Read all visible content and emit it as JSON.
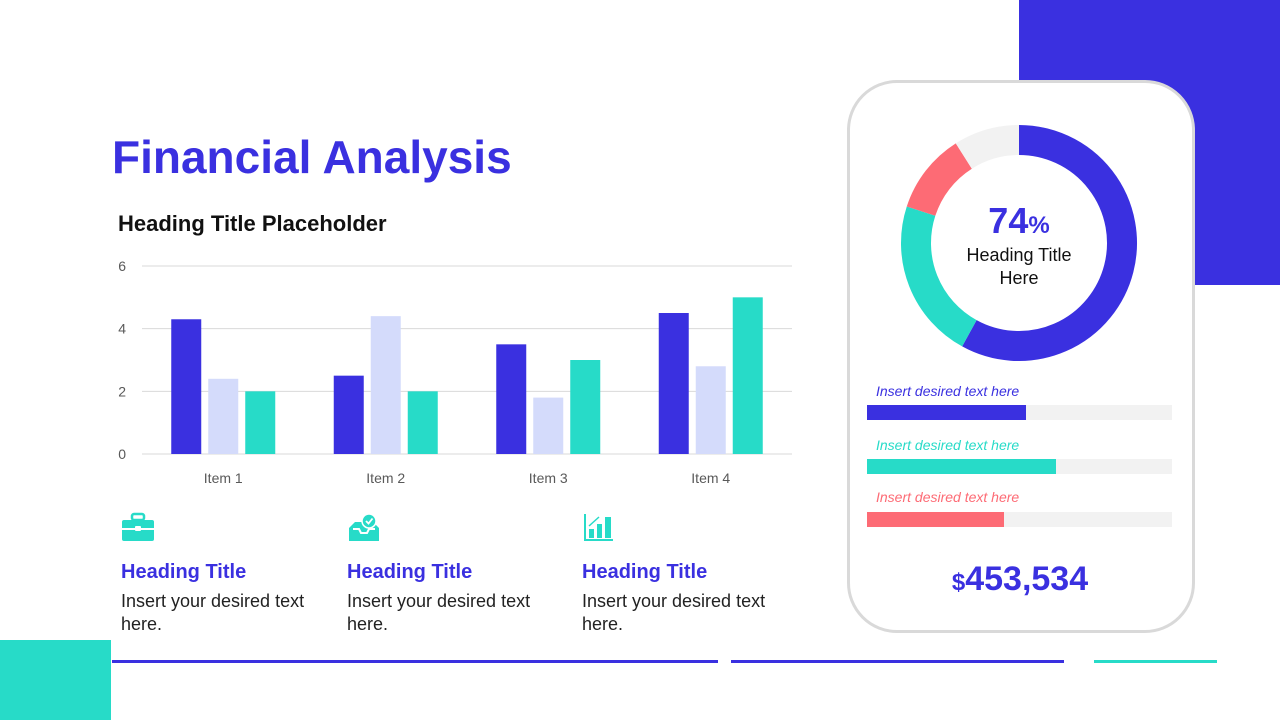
{
  "title": "Financial Analysis",
  "subtitle": "Heading Title Placeholder",
  "colors": {
    "primary": "#3a30e0",
    "light": "#d4dbfb",
    "teal": "#27dbc8",
    "red": "#fd6b75",
    "grey": "#f2f2f2"
  },
  "chart_data": {
    "type": "bar",
    "categories": [
      "Item 1",
      "Item 2",
      "Item 3",
      "Item 4"
    ],
    "series": [
      {
        "values": [
          4.3,
          2.5,
          3.5,
          4.5
        ],
        "color": "#3a30e0"
      },
      {
        "values": [
          2.4,
          4.4,
          1.8,
          2.8
        ],
        "color": "#d4dbfb"
      },
      {
        "values": [
          2,
          2,
          3,
          5
        ],
        "color": "#27dbc8"
      }
    ],
    "yticks": [
      0,
      2,
      4,
      6
    ],
    "ylim": [
      0,
      6
    ],
    "grid": true
  },
  "features": [
    {
      "icon": "briefcase-icon",
      "heading": "Heading Title",
      "text": "Insert your desired text here."
    },
    {
      "icon": "inbox-check-icon",
      "heading": "Heading Title",
      "text": "Insert your desired text here."
    },
    {
      "icon": "growth-chart-icon",
      "heading": "Heading Title",
      "text": "Insert your desired text here."
    }
  ],
  "donut": {
    "percent_value": "74",
    "percent_sign": "%",
    "label": "Heading Title Here",
    "segments": [
      {
        "value": 58,
        "color": "#3a30e0"
      },
      {
        "value": 22,
        "color": "#27dbc8"
      },
      {
        "value": 11,
        "color": "#fd6b75"
      },
      {
        "value": 9,
        "color": "#f2f2f2"
      }
    ]
  },
  "progress": [
    {
      "label": "Insert desired text here",
      "percent": 52,
      "color": "#3a30e0"
    },
    {
      "label": "Insert desired text here",
      "percent": 62,
      "color": "#27dbc8"
    },
    {
      "label": "Insert desired text here",
      "percent": 45,
      "color": "#fd6b75"
    }
  ],
  "total": {
    "currency": "$",
    "amount": "453,534"
  }
}
